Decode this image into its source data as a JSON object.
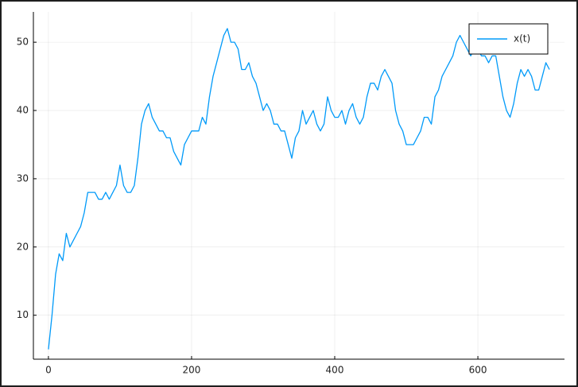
{
  "chart_data": {
    "type": "line",
    "x": [
      0,
      5,
      10,
      15,
      20,
      25,
      30,
      35,
      40,
      45,
      50,
      55,
      60,
      65,
      70,
      75,
      80,
      85,
      90,
      95,
      100,
      105,
      110,
      115,
      120,
      125,
      130,
      135,
      140,
      145,
      150,
      155,
      160,
      165,
      170,
      175,
      180,
      185,
      190,
      195,
      200,
      205,
      210,
      215,
      220,
      225,
      230,
      235,
      240,
      245,
      250,
      255,
      260,
      265,
      270,
      275,
      280,
      285,
      290,
      295,
      300,
      305,
      310,
      315,
      320,
      325,
      330,
      335,
      340,
      345,
      350,
      355,
      360,
      365,
      370,
      375,
      380,
      385,
      390,
      395,
      400,
      405,
      410,
      415,
      420,
      425,
      430,
      435,
      440,
      445,
      450,
      455,
      460,
      465,
      470,
      475,
      480,
      485,
      490,
      495,
      500,
      505,
      510,
      515,
      520,
      525,
      530,
      535,
      540,
      545,
      550,
      555,
      560,
      565,
      570,
      575,
      580,
      585,
      590,
      595,
      600,
      605,
      610,
      615,
      620,
      625,
      630,
      635,
      640,
      645,
      650,
      655,
      660,
      665,
      670,
      675,
      680,
      685,
      690,
      695,
      700
    ],
    "series": [
      {
        "name": "x(t)",
        "color": "#009af9",
        "values": [
          5,
          10,
          16,
          19,
          18,
          22,
          20,
          21,
          22,
          23,
          25,
          28,
          28,
          28,
          27,
          27,
          28,
          27,
          28,
          29,
          32,
          29,
          28,
          28,
          29,
          33,
          38,
          40,
          41,
          39,
          38,
          37,
          37,
          36,
          36,
          34,
          33,
          32,
          35,
          36,
          37,
          37,
          37,
          39,
          38,
          42,
          45,
          47,
          49,
          51,
          52,
          50,
          50,
          49,
          46,
          46,
          47,
          45,
          44,
          42,
          40,
          41,
          40,
          38,
          38,
          37,
          37,
          35,
          33,
          36,
          37,
          40,
          38,
          39,
          40,
          38,
          37,
          38,
          42,
          40,
          39,
          39,
          40,
          38,
          40,
          41,
          39,
          38,
          39,
          42,
          44,
          44,
          43,
          45,
          46,
          45,
          44,
          40,
          38,
          37,
          35,
          35,
          35,
          36,
          37,
          39,
          39,
          38,
          42,
          43,
          45,
          46,
          47,
          48,
          50,
          51,
          50,
          49,
          48,
          49,
          49,
          48,
          48,
          47,
          48,
          48,
          45,
          42,
          40,
          39,
          41,
          44,
          46,
          45,
          46,
          45,
          43,
          43,
          45,
          47,
          46
        ]
      }
    ],
    "xlim": [
      -21,
      721
    ],
    "ylim": [
      3.56,
      54.44
    ],
    "xticks": [
      0,
      200,
      400,
      600
    ],
    "yticks": [
      10,
      20,
      30,
      40,
      50
    ],
    "grid": true,
    "legend": "top-right"
  }
}
